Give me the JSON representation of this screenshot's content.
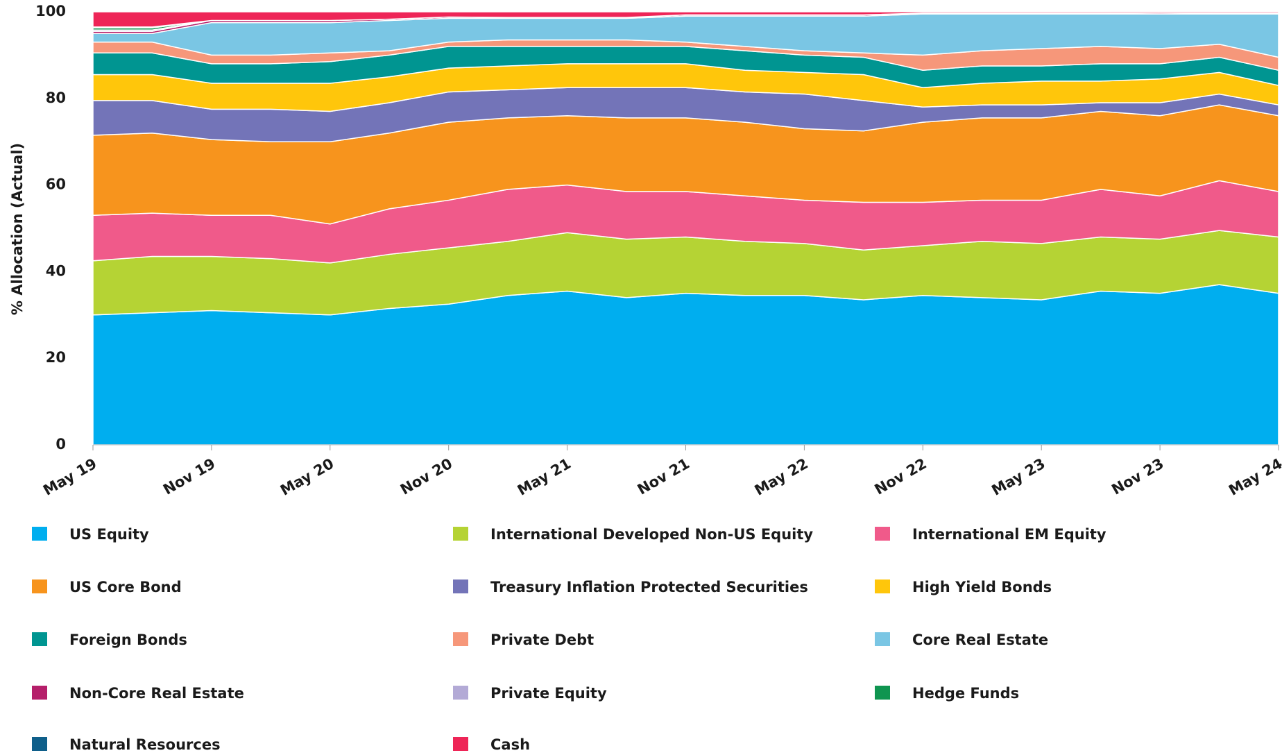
{
  "chart_data": {
    "type": "stacked_area",
    "y_axis_label": "% Allocation (Actual)",
    "categories": [
      "May 19",
      null,
      "Nov 19",
      null,
      "May 20",
      null,
      "Nov 20",
      null,
      "May 21",
      null,
      "Nov 21",
      null,
      "May 22",
      null,
      "Nov 22",
      null,
      "May 23",
      null,
      "Nov 23",
      null,
      "May 24"
    ],
    "ylim": [
      0,
      100
    ],
    "yticks": [
      0,
      20,
      40,
      60,
      80,
      100
    ],
    "series": [
      {
        "name": "US Equity",
        "color": "#00aeef",
        "values": [
          30,
          30.5,
          31,
          30.5,
          30,
          31.5,
          32.5,
          34.5,
          35.5,
          34,
          35,
          34.5,
          34.5,
          33.5,
          34.5,
          34,
          33.5,
          35.5,
          35,
          37,
          35
        ]
      },
      {
        "name": "International Developed Non-US Equity",
        "color": "#b5d334",
        "values": [
          12.5,
          13,
          12.5,
          12.5,
          12,
          12.5,
          13,
          12.5,
          13.5,
          13.5,
          13,
          12.5,
          12,
          11.5,
          11.5,
          13,
          13,
          12.5,
          12.5,
          12.5,
          13
        ]
      },
      {
        "name": "International EM Equity",
        "color": "#f05a8a",
        "values": [
          10.5,
          10,
          9.5,
          10,
          9,
          10.5,
          11,
          12,
          11,
          11,
          10.5,
          10.5,
          10,
          11,
          10,
          9.5,
          10,
          11,
          10,
          11.5,
          10.5
        ]
      },
      {
        "name": "US Core Bond",
        "color": "#f7941d",
        "values": [
          18.5,
          18.5,
          17.5,
          17,
          19,
          17.5,
          18,
          16.5,
          16,
          17,
          17,
          17,
          16.5,
          16.5,
          18.5,
          19,
          19,
          18,
          18.5,
          17.5,
          17.5
        ]
      },
      {
        "name": "Treasury Inflation Protected Securities",
        "color": "#7374b8",
        "values": [
          8,
          7.5,
          7,
          7.5,
          7,
          7,
          7,
          6.5,
          6.5,
          7,
          7,
          7,
          8,
          7,
          3.5,
          3,
          3,
          2,
          3,
          2.5,
          2.5
        ]
      },
      {
        "name": "High Yield Bonds",
        "color": "#ffc60b",
        "values": [
          6,
          6,
          6,
          6,
          6.5,
          6,
          5.5,
          5.5,
          5.5,
          5.5,
          5.5,
          5,
          5,
          6,
          4.5,
          5,
          5.5,
          5,
          5.5,
          5,
          4.5
        ]
      },
      {
        "name": "Foreign Bonds",
        "color": "#009591",
        "values": [
          5,
          5,
          4.5,
          4.5,
          5,
          5,
          5,
          4.5,
          4,
          4,
          4,
          4.5,
          4,
          4,
          4,
          4,
          3.5,
          4,
          3.5,
          3.5,
          3.5
        ]
      },
      {
        "name": "Private Debt",
        "color": "#f6977a",
        "values": [
          2.5,
          2.5,
          2,
          2,
          2,
          1,
          1,
          1.5,
          1.5,
          1.5,
          1,
          1,
          1,
          1,
          3.5,
          3.5,
          4,
          4,
          3.5,
          3,
          3
        ]
      },
      {
        "name": "Core Real Estate",
        "color": "#7ac6e4",
        "values": [
          2,
          2,
          7.5,
          7.5,
          7,
          7,
          5.5,
          5,
          5,
          5,
          6,
          7,
          8,
          8.5,
          9.5,
          8.5,
          8,
          7.5,
          8,
          7,
          10
        ]
      },
      {
        "name": "Non-Core Real Estate",
        "color": "#b51f6a",
        "values": [
          0.5,
          0.5,
          0.5,
          0.5,
          0.5,
          0.3,
          0.3,
          0.2,
          0.2,
          0.2,
          0.3,
          0.3,
          0.3,
          0.3,
          0.2,
          0.2,
          0.2,
          0.2,
          0.3,
          0.2,
          0.2
        ]
      },
      {
        "name": "Private Equity",
        "color": "#b3aad6",
        "values": [
          0.3,
          0.3,
          0,
          0,
          0,
          0,
          0,
          0,
          0,
          0,
          0,
          0,
          0,
          0,
          0,
          0,
          0,
          0,
          0,
          0,
          0
        ]
      },
      {
        "name": "Hedge Funds",
        "color": "#0f9550",
        "values": [
          0.5,
          0.5,
          0,
          0,
          0,
          0,
          0,
          0,
          0,
          0,
          0,
          0,
          0,
          0,
          0,
          0,
          0,
          0,
          0,
          0,
          0
        ]
      },
      {
        "name": "Natural Resources",
        "color": "#0f5f8a",
        "values": [
          0.2,
          0.2,
          0,
          0,
          0,
          0,
          0,
          0,
          0,
          0,
          0,
          0,
          0,
          0,
          0,
          0,
          0,
          0,
          0,
          0,
          0
        ]
      },
      {
        "name": "Cash",
        "color": "#ee2557",
        "values": [
          3.5,
          3.5,
          2,
          2,
          2,
          1.7,
          1.2,
          1.3,
          1.3,
          1.3,
          0.7,
          0.7,
          0.7,
          0.7,
          0.3,
          0.3,
          0.3,
          0.3,
          0.3,
          0.3,
          0.3
        ]
      }
    ]
  }
}
